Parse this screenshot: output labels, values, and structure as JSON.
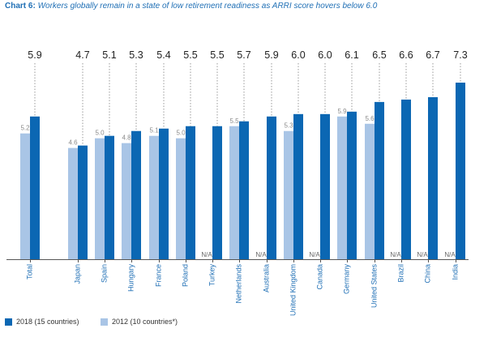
{
  "title_lead": "Chart 6:",
  "title_text": "Workers globally remain in a state of low retirement readiness as ARRI score hovers below 6.0",
  "colors": {
    "series2018": "#0b67b3",
    "series2012": "#a9c5e6",
    "axis": "#555555",
    "label2018": "#222222",
    "label2012": "#8a8a8a",
    "na": "#666666",
    "category": "#1f6fb5"
  },
  "chart_data": {
    "type": "bar",
    "title": "Workers globally remain in a state of low retirement readiness as ARRI score hovers below 6.0",
    "categories": [
      "Total",
      "Japan",
      "Spain",
      "Hungary",
      "France",
      "Poland",
      "Turkey",
      "Netherlands",
      "Australia",
      "United Kingdom",
      "Canada",
      "Germany",
      "United States",
      "Brazil",
      "China",
      "India"
    ],
    "series": [
      {
        "name": "2018 (15 countries)",
        "values": [
          5.9,
          4.7,
          5.1,
          5.3,
          5.4,
          5.5,
          5.5,
          5.7,
          5.9,
          6.0,
          6.0,
          6.1,
          6.5,
          6.6,
          6.7,
          7.3
        ]
      },
      {
        "name": "2012 (10 countries*)",
        "values": [
          5.2,
          4.6,
          5.0,
          4.8,
          5.1,
          5.0,
          null,
          5.5,
          null,
          5.3,
          null,
          5.9,
          5.6,
          null,
          null,
          null
        ]
      }
    ],
    "na_label": "N/A",
    "ylim": [
      0,
      8
    ],
    "grid": false,
    "legend_position": "bottom-left"
  },
  "legend": [
    {
      "label": "2018 (15 countries)",
      "color": "#0b67b3"
    },
    {
      "label": "2012 (10 countries*)",
      "color": "#a9c5e6"
    }
  ]
}
